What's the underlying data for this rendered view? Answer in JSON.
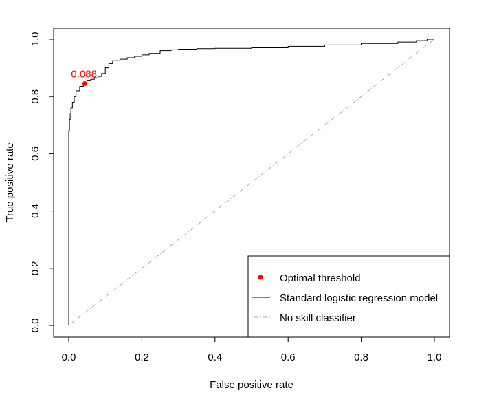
{
  "chart_data": {
    "type": "line",
    "title": "",
    "xlabel": "False positive rate",
    "ylabel": "True positive rate",
    "xlim": [
      0,
      1
    ],
    "ylim": [
      0,
      1
    ],
    "xticks": [
      0.0,
      0.2,
      0.4,
      0.6,
      0.8,
      1.0
    ],
    "yticks": [
      0.0,
      0.2,
      0.4,
      0.6,
      0.8,
      1.0
    ],
    "xtick_labels": [
      "0.0",
      "0.2",
      "0.4",
      "0.6",
      "0.8",
      "1.0"
    ],
    "ytick_labels": [
      "0.0",
      "0.2",
      "0.4",
      "0.6",
      "0.8",
      "1.0"
    ],
    "grid": false,
    "legend_position": "bottom-right",
    "series": [
      {
        "name": "Standard logistic regression model",
        "color": "#000000",
        "style": "solid",
        "x": [
          0.0,
          0.0,
          0.002,
          0.004,
          0.006,
          0.01,
          0.015,
          0.02,
          0.03,
          0.04,
          0.05,
          0.06,
          0.07,
          0.08,
          0.09,
          0.1,
          0.11,
          0.12,
          0.14,
          0.16,
          0.18,
          0.2,
          0.22,
          0.25,
          0.28,
          0.3,
          0.35,
          0.4,
          0.5,
          0.6,
          0.7,
          0.8,
          0.9,
          0.95,
          0.98,
          1.0
        ],
        "y": [
          0.0,
          0.63,
          0.68,
          0.72,
          0.74,
          0.76,
          0.78,
          0.8,
          0.82,
          0.835,
          0.845,
          0.855,
          0.86,
          0.865,
          0.87,
          0.88,
          0.9,
          0.915,
          0.925,
          0.93,
          0.935,
          0.94,
          0.945,
          0.95,
          0.96,
          0.963,
          0.965,
          0.967,
          0.968,
          0.97,
          0.975,
          0.98,
          0.985,
          0.99,
          0.995,
          1.0
        ]
      },
      {
        "name": "No skill classifier",
        "color": "#aaaaaa",
        "style": "dotdash",
        "x": [
          0.0,
          1.0
        ],
        "y": [
          0.0,
          1.0
        ]
      }
    ],
    "points": [
      {
        "name": "Optimal threshold",
        "x": 0.044,
        "y": 0.845,
        "label": "0.088",
        "color": "#ff0000"
      }
    ]
  }
}
